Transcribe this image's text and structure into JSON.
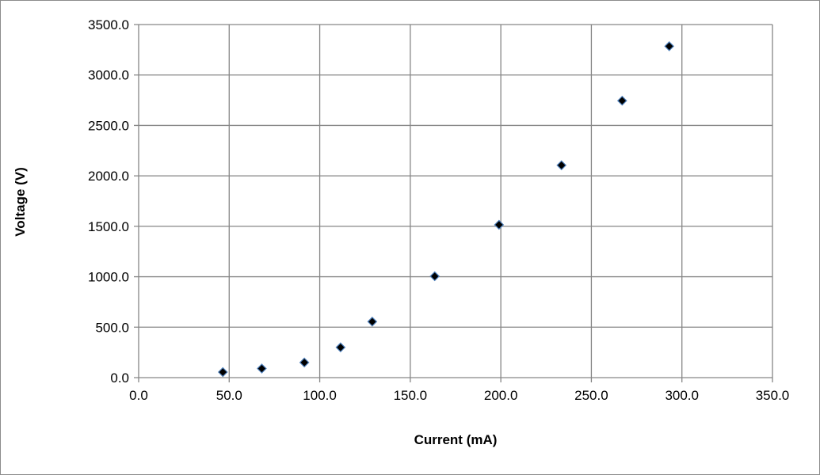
{
  "chart_data": {
    "type": "scatter",
    "title": "",
    "xlabel": "Current (mA)",
    "ylabel": "Voltage (V)",
    "xlim": [
      0,
      350
    ],
    "ylim": [
      0,
      3500
    ],
    "xticks": [
      0,
      50,
      100,
      150,
      200,
      250,
      300,
      350
    ],
    "yticks": [
      0,
      500,
      1000,
      1500,
      2000,
      2500,
      3000,
      3500
    ],
    "xtick_labels": [
      "0.0",
      "50.0",
      "100.0",
      "150.0",
      "200.0",
      "250.0",
      "300.0",
      "350.0"
    ],
    "ytick_labels": [
      "0.0",
      "500.0",
      "1000.0",
      "1500.0",
      "2000.0",
      "2500.0",
      "3000.0",
      "3500.0"
    ],
    "grid": true,
    "legend": "none",
    "marker": "diamond",
    "marker_fill": "#000000",
    "marker_edge": "#4f81bd",
    "points": [
      {
        "x": 46.5,
        "y": 55
      },
      {
        "x": 68.0,
        "y": 90
      },
      {
        "x": 91.5,
        "y": 150
      },
      {
        "x": 111.5,
        "y": 300
      },
      {
        "x": 129.0,
        "y": 555
      },
      {
        "x": 163.5,
        "y": 1005
      },
      {
        "x": 199.0,
        "y": 1515
      },
      {
        "x": 233.5,
        "y": 2105
      },
      {
        "x": 267.0,
        "y": 2745
      },
      {
        "x": 293.0,
        "y": 3285
      }
    ]
  }
}
